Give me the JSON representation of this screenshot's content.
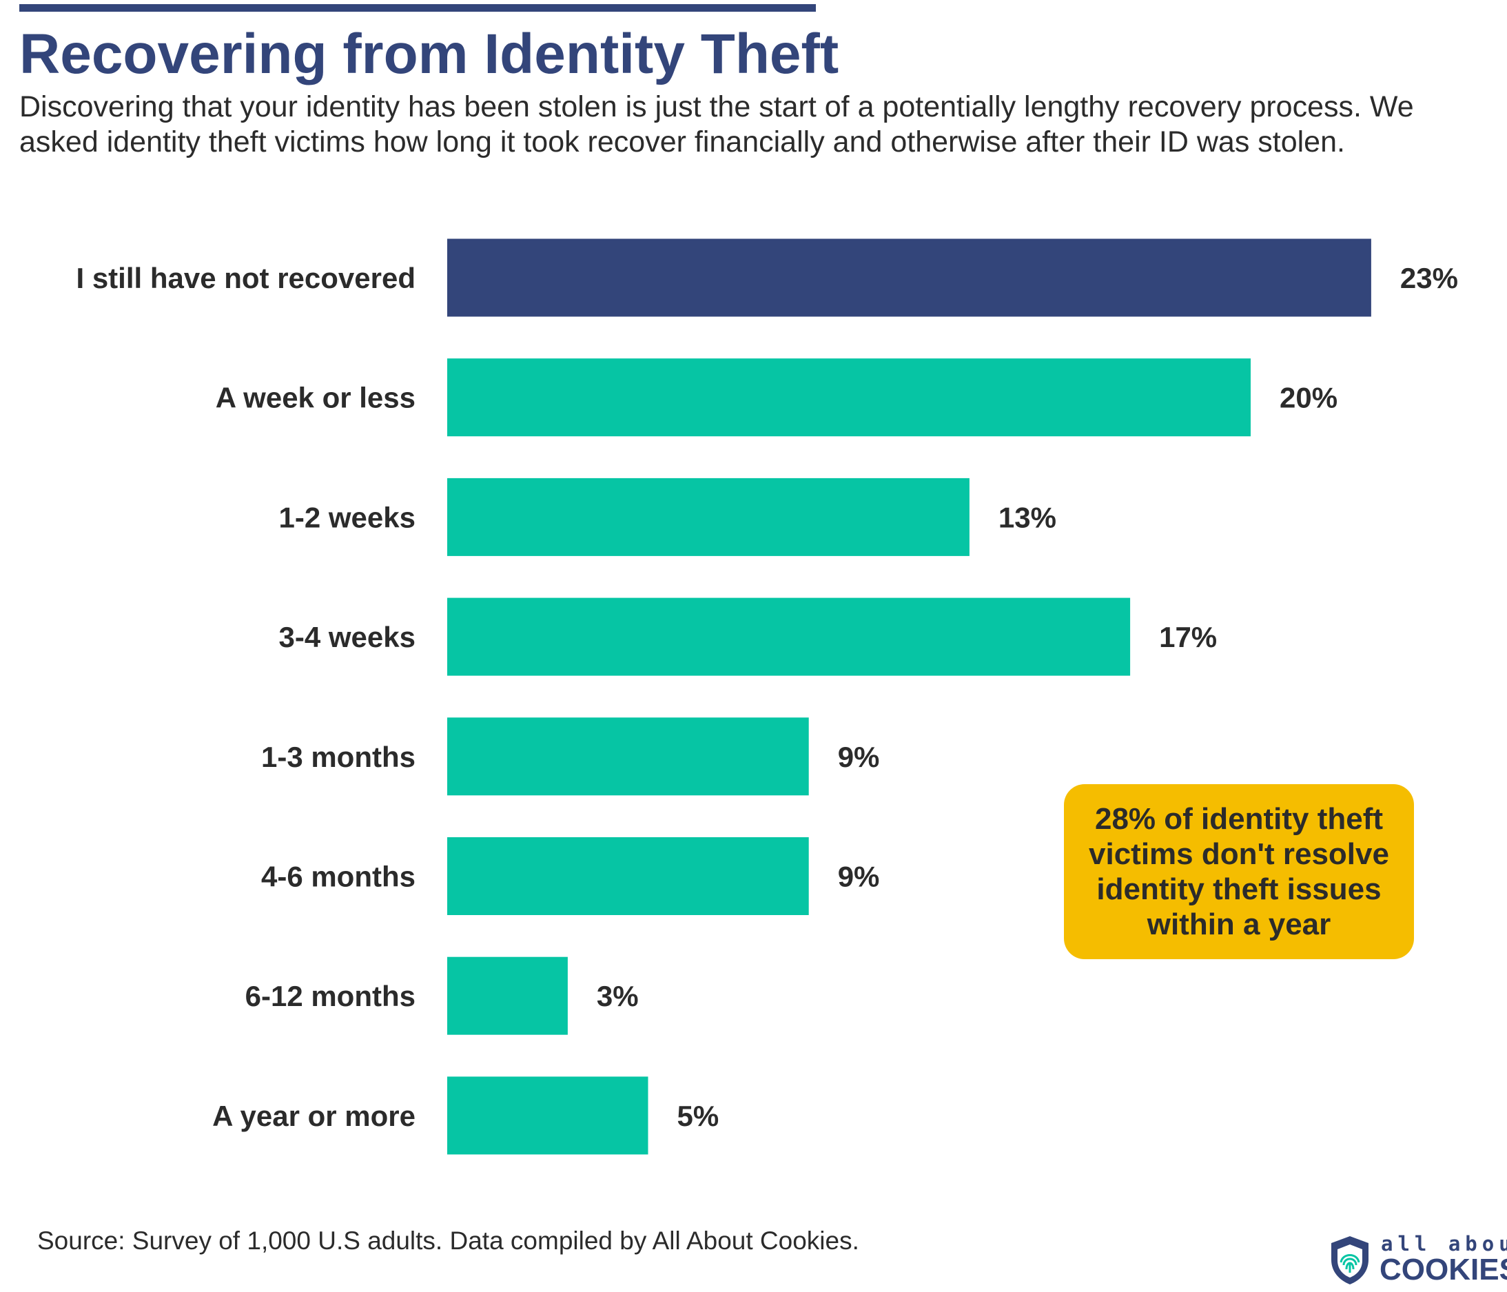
{
  "header": {
    "title": "Recovering from Identity Theft",
    "subtitle": "Discovering that your identity has been stolen is just the start of a potentially lengthy recovery process. We asked identity theft victims how long it took recover financially and otherwise after their ID was stolen."
  },
  "callout": {
    "text": "28% of identity theft victims don't resolve identity theft issues within a year"
  },
  "footer": {
    "source": "Source: Survey of 1,000 U.S adults. Data compiled by All About Cookies."
  },
  "logo": {
    "top": "all about",
    "bottom": "COOKIES",
    "icon": "shield-fingerprint-icon"
  },
  "colors": {
    "title": "#33457a",
    "highlight_bar": "#33457a",
    "bar": "#06c5a4",
    "callout": "#f5bd00"
  },
  "chart_data": {
    "type": "bar",
    "orientation": "horizontal",
    "title": "Recovering from Identity Theft",
    "xlabel": "",
    "ylabel": "",
    "grid": false,
    "categories": [
      "I still have not recovered",
      "A week or less",
      "1-2 weeks",
      "3-4 weeks",
      "1-3 months",
      "4-6 months",
      "6-12 months",
      "A year or more"
    ],
    "values": [
      23,
      20,
      13,
      17,
      9,
      9,
      3,
      5
    ],
    "value_labels": [
      "23%",
      "20%",
      "13%",
      "17%",
      "9%",
      "9%",
      "3%",
      "5%"
    ],
    "highlighted_category": "I still have not recovered",
    "unit": "%"
  }
}
